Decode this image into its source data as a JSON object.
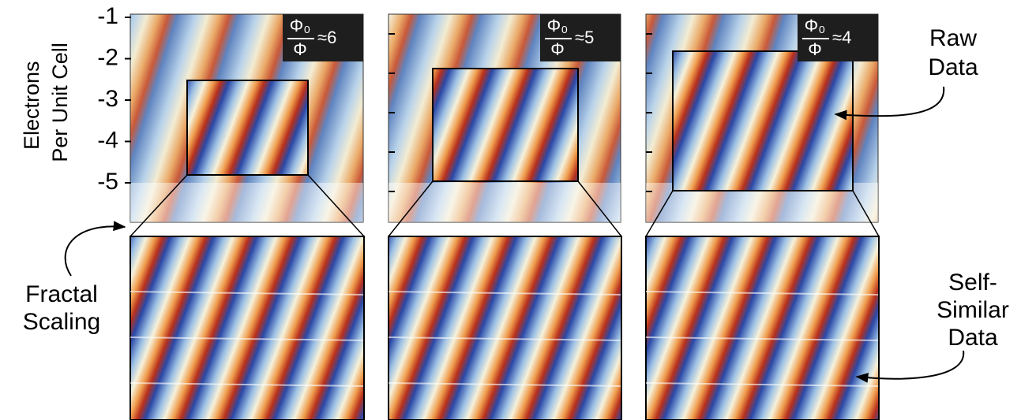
{
  "y_axis": {
    "label": [
      "Electrons",
      "Per Unit Cell"
    ],
    "ticks": [
      "-1",
      "-2",
      "-3",
      "-4",
      "-5"
    ]
  },
  "panels": [
    {
      "numerator": "Φ₀",
      "denominator": "Φ",
      "ratio": "≈6"
    },
    {
      "numerator": "Φ₀",
      "denominator": "Φ",
      "ratio": "≈5"
    },
    {
      "numerator": "Φ₀",
      "denominator": "Φ",
      "ratio": "≈4"
    }
  ],
  "annotations": {
    "raw_data": [
      "Raw",
      "Data"
    ],
    "self_similar": [
      "Self-",
      "Similar",
      "Data"
    ],
    "fractal_scaling": [
      "Fractal",
      "Scaling"
    ]
  }
}
